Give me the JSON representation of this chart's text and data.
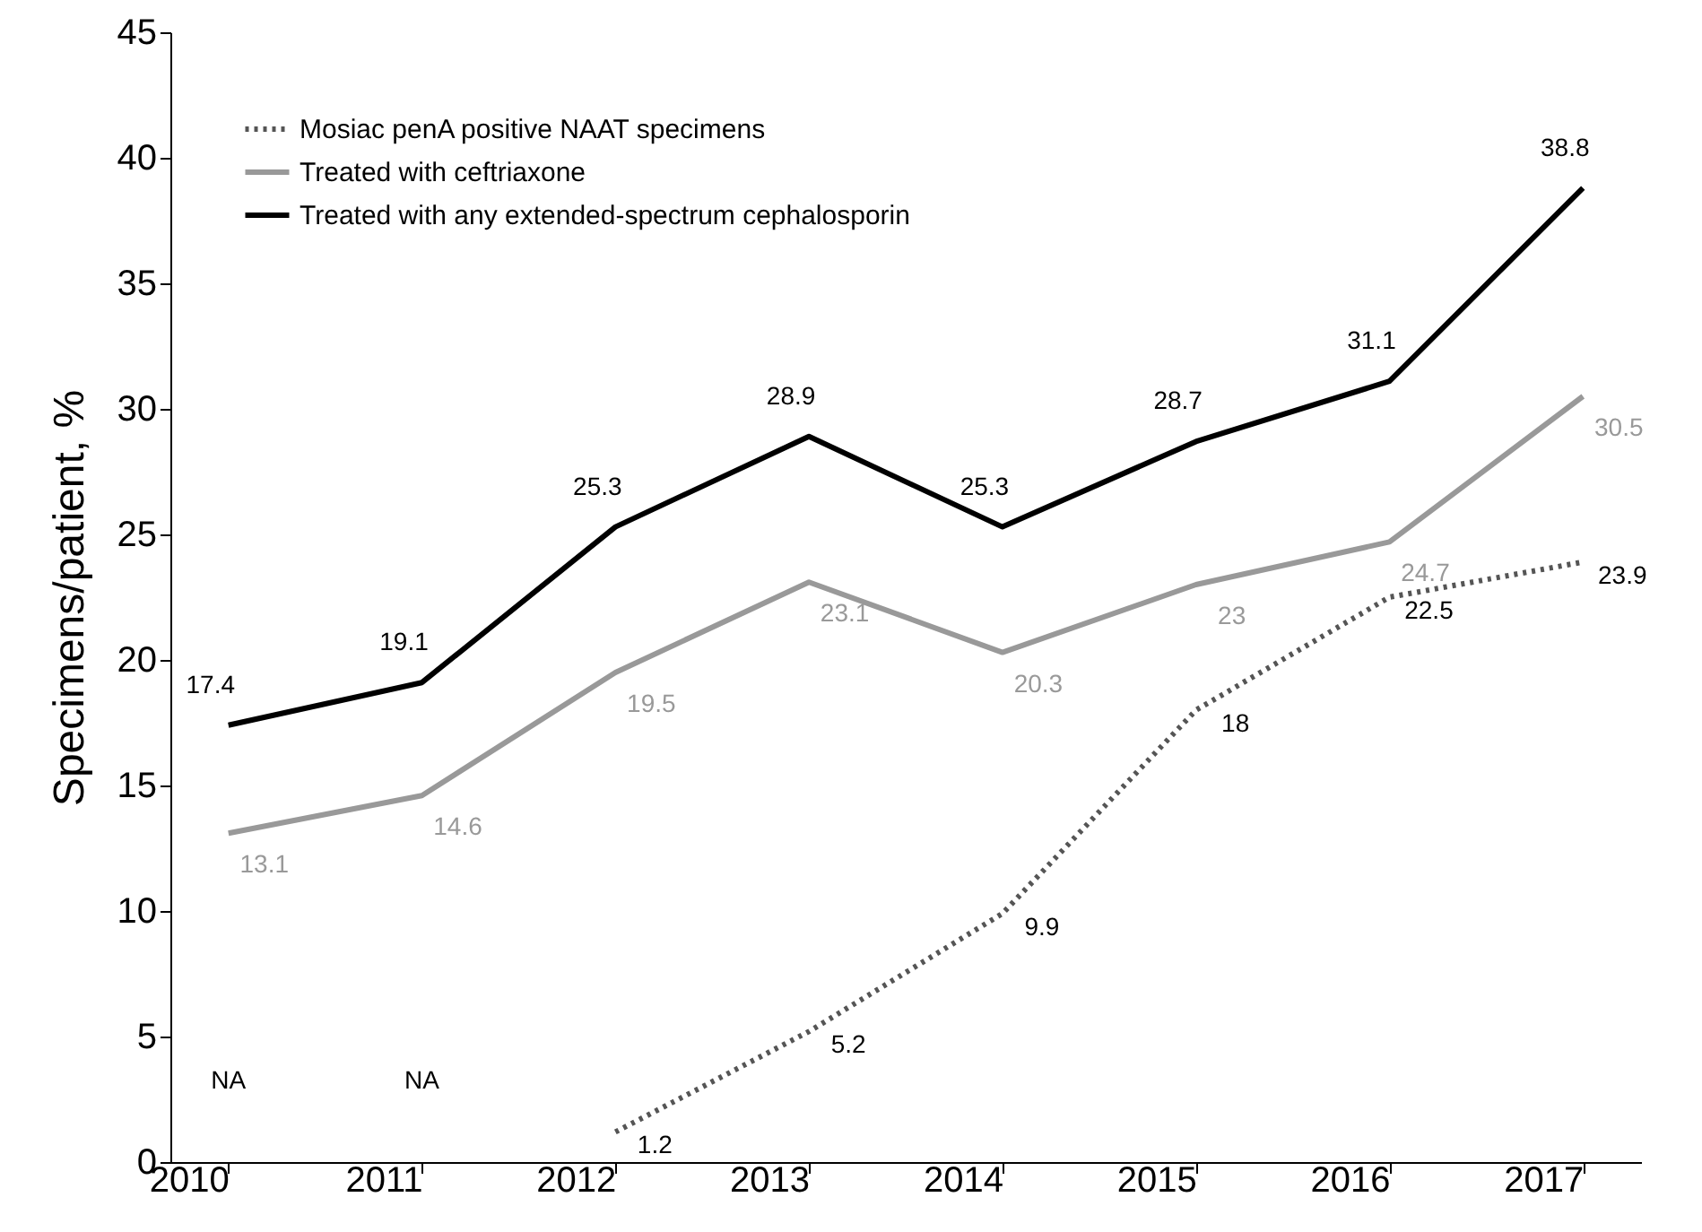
{
  "chart_data": {
    "type": "line",
    "ylabel": "Specimens/patient, %",
    "categories": [
      "2010",
      "2011",
      "2012",
      "2013",
      "2014",
      "2015",
      "2016",
      "2017"
    ],
    "series": [
      {
        "name": "Mosiac penA positive NAAT specimens",
        "color": "#555555",
        "line_style": "dotted",
        "values": [
          null,
          null,
          1.2,
          5.2,
          9.9,
          18,
          22.5,
          23.9
        ],
        "value_labels": [
          "NA",
          "NA",
          "1.2",
          "5.2",
          "9.9",
          "18",
          "22.5",
          "23.9"
        ]
      },
      {
        "name": "Treated with ceftriaxone",
        "color": "#999999",
        "line_style": "solid",
        "values": [
          13.1,
          14.6,
          19.5,
          23.1,
          20.3,
          23,
          24.7,
          30.5
        ]
      },
      {
        "name": "Treated with any extended-spectrum cephalosporin",
        "color": "#000000",
        "line_style": "solid",
        "values": [
          17.4,
          19.1,
          25.3,
          28.9,
          25.3,
          28.7,
          31.1,
          38.8
        ]
      }
    ],
    "data_labels": true,
    "ylim": [
      0,
      45
    ],
    "yticks": [
      0,
      5,
      10,
      15,
      20,
      25,
      30,
      35,
      40,
      45
    ],
    "grid": false,
    "legend": "top left",
    "marker": "none"
  }
}
